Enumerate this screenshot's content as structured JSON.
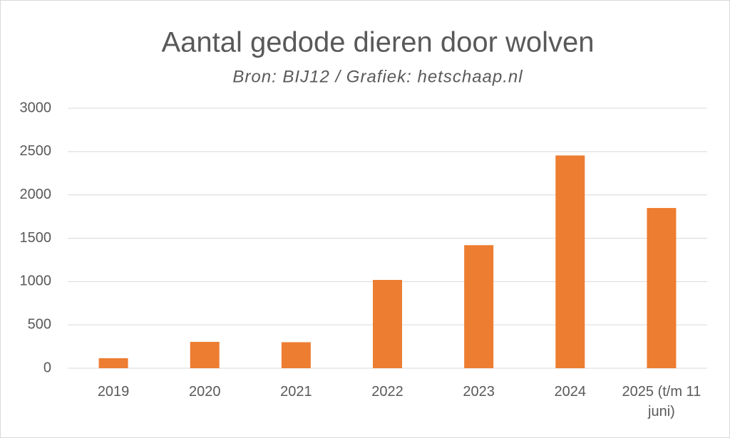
{
  "chart_data": {
    "type": "bar",
    "title": "Aantal gedode dieren door wolven",
    "subtitle": "Bron: BIJ12 / Grafiek: hetschaap.nl",
    "categories": [
      "2019",
      "2020",
      "2021",
      "2022",
      "2023",
      "2024",
      "2025 (t/m 11 juni)"
    ],
    "values": [
      115,
      304,
      300,
      1019,
      1420,
      2455,
      1849
    ],
    "color": "#ed7d31",
    "ylim": [
      0,
      3000
    ],
    "yticks": [
      0,
      500,
      1000,
      1500,
      2000,
      2500,
      3000
    ],
    "grid": true
  }
}
